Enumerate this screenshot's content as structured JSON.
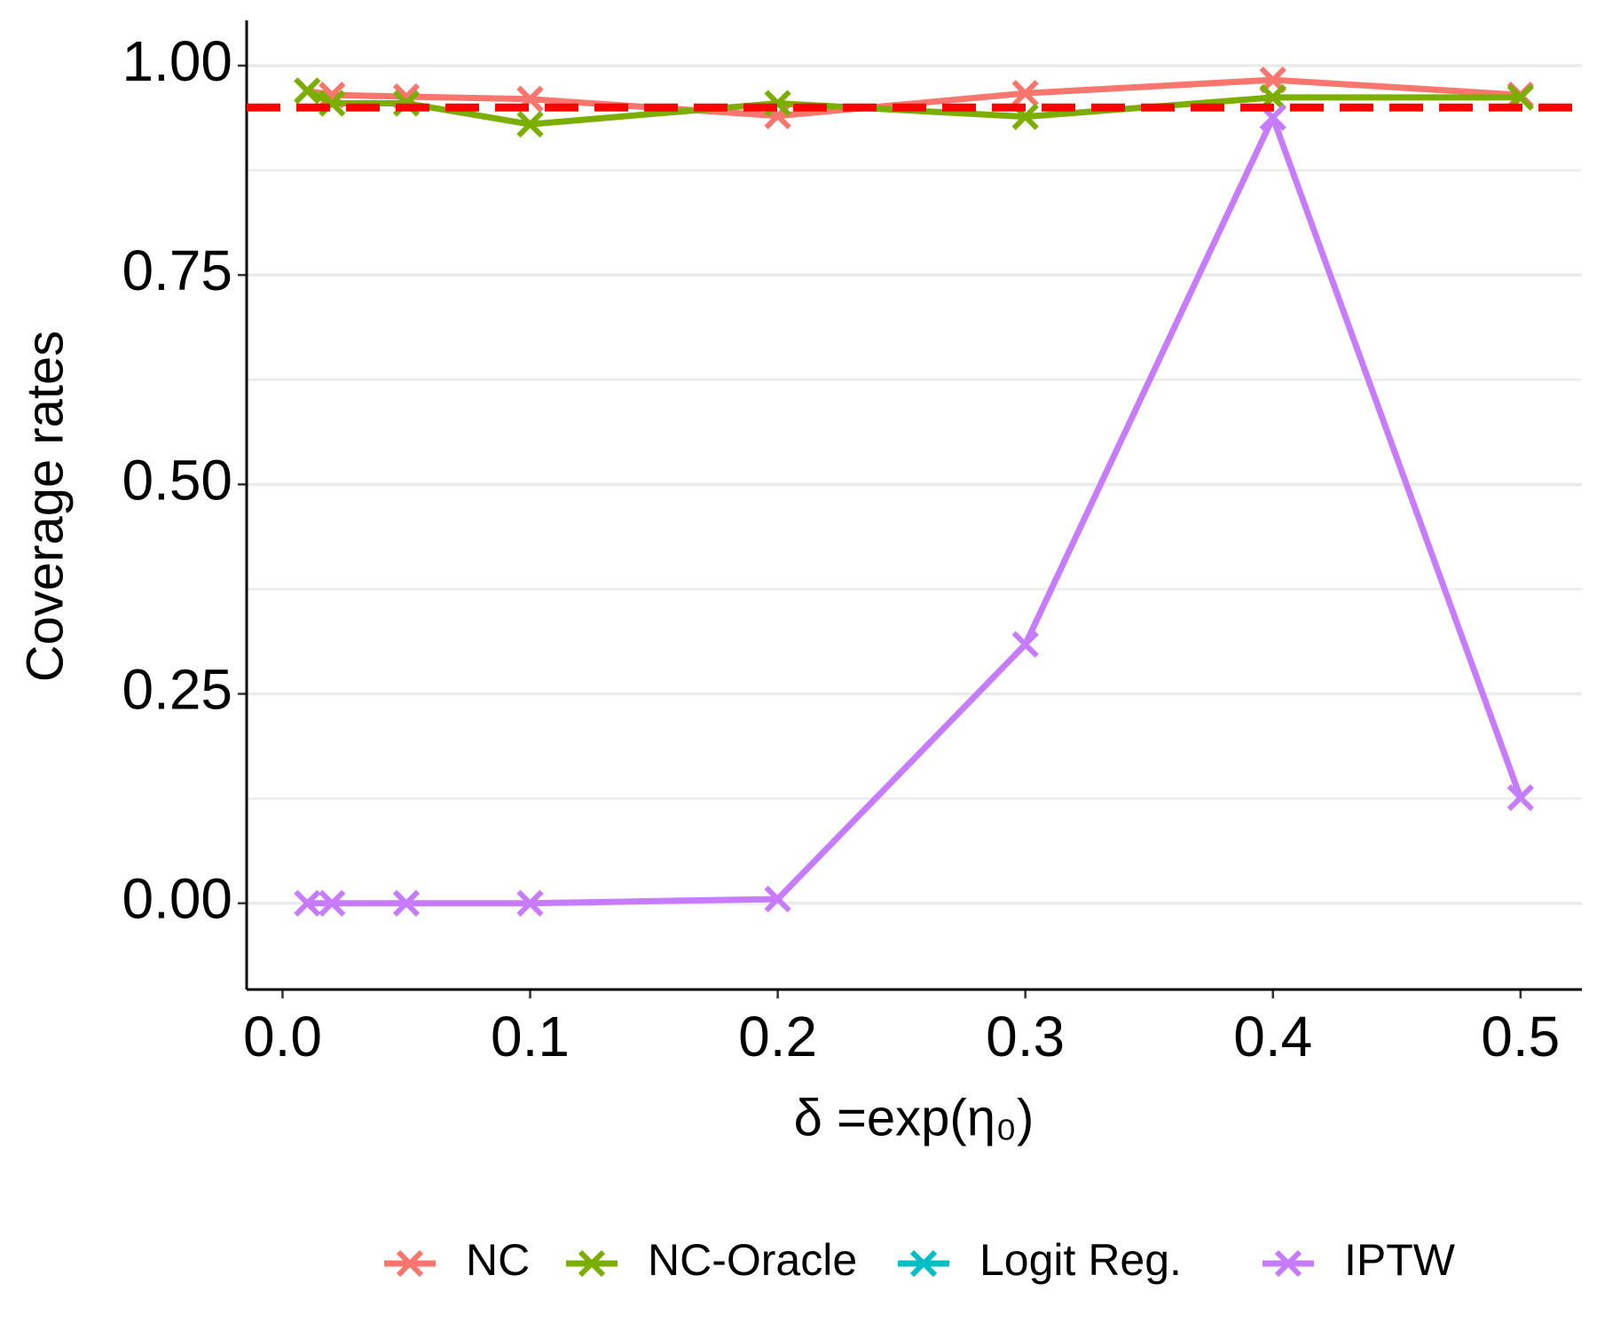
{
  "chart_data": {
    "type": "line",
    "x_label": "δ =exp(η₀)",
    "y_label": "Coverage rates",
    "x": [
      0.01,
      0.02,
      0.05,
      0.1,
      0.2,
      0.3,
      0.4,
      0.5
    ],
    "series": [
      {
        "name": "NC",
        "color": "#f8766d",
        "values": [
          0.97,
          0.965,
          0.963,
          0.96,
          0.94,
          0.967,
          0.983,
          0.965
        ]
      },
      {
        "name": "NC-Oracle",
        "color": "#7cae00",
        "values": [
          0.97,
          0.955,
          0.955,
          0.93,
          0.955,
          0.939,
          0.962,
          0.962
        ]
      },
      {
        "name": "Logit Reg.",
        "color": "#00bfc4",
        "values": [
          null,
          null,
          null,
          null,
          null,
          null,
          null,
          null
        ]
      },
      {
        "name": "IPTW",
        "color": "#c77cff",
        "values": [
          0,
          0,
          0,
          0,
          0.005,
          0.309,
          0.938,
          0.126
        ]
      }
    ],
    "reference_line": {
      "value": 0.95,
      "color": "#ff0000"
    },
    "xlim": [
      -0.0145,
      0.5248
    ],
    "ylim": [
      -0.103,
      1.054
    ],
    "xticks": [
      {
        "value": 0,
        "label": "0.0"
      },
      0.1,
      0.2,
      0.3,
      0.4,
      0.5
    ],
    "yticks": [
      {
        "value": 0,
        "label": "0.00"
      },
      0.25,
      {
        "value": 0.5,
        "label": "0.50"
      },
      0.75,
      {
        "value": 1,
        "label": "1.00"
      }
    ],
    "yminorticks": [
      0.125,
      0.375,
      0.625,
      0.875
    ],
    "grid": true,
    "legend": "bottom"
  }
}
